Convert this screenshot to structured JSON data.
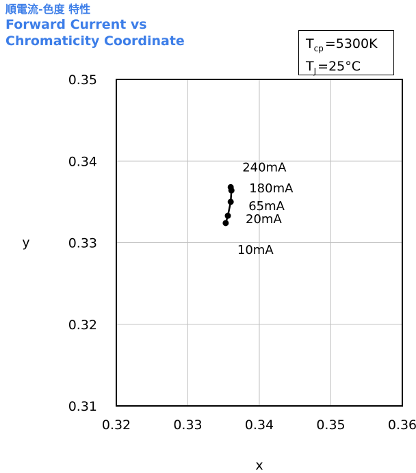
{
  "title": {
    "jp": "順電流-色度 特性",
    "en_line1": "Forward Current vs",
    "en_line2": "Chromaticity Coordinate"
  },
  "conditions": {
    "tcp_label": "T",
    "tcp_sub": "cp",
    "tcp_value": "=5300K",
    "tj_label": "T",
    "tj_sub": "J",
    "tj_value": "=25°C"
  },
  "chart_data": {
    "type": "line",
    "xlabel": "x",
    "ylabel": "y",
    "xlim": [
      0.32,
      0.36
    ],
    "ylim": [
      0.31,
      0.35
    ],
    "x_ticks": [
      "0.32",
      "0.33",
      "0.34",
      "0.35",
      "0.36"
    ],
    "y_ticks": [
      "0.31",
      "0.32",
      "0.33",
      "0.34",
      "0.35"
    ],
    "grid": true,
    "series": [
      {
        "points": [
          {
            "label": "10mA",
            "x": 0.3353,
            "y": 0.3324
          },
          {
            "label": "20mA",
            "x": 0.3356,
            "y": 0.3333
          },
          {
            "label": "65mA",
            "x": 0.336,
            "y": 0.335
          },
          {
            "label": "180mA",
            "x": 0.3361,
            "y": 0.3364
          },
          {
            "label": "240mA",
            "x": 0.336,
            "y": 0.3368
          }
        ]
      }
    ],
    "colors": {
      "line": "#000000",
      "grid": "#bfbfbf",
      "title": "#3d7ee8"
    }
  }
}
